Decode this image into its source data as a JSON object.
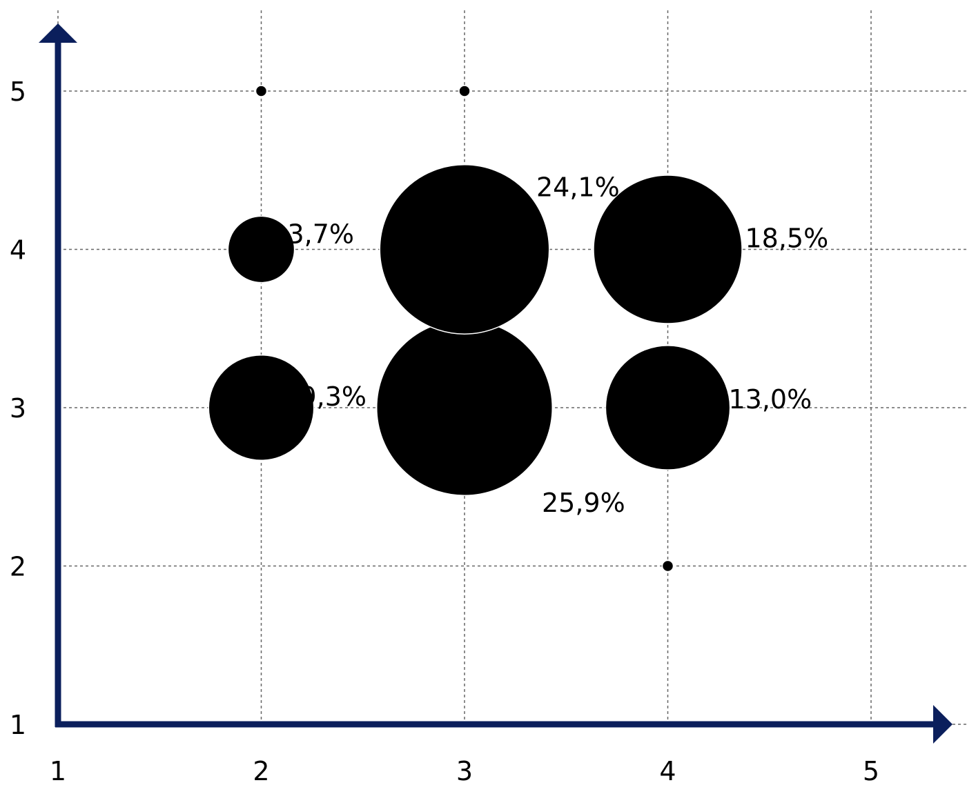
{
  "chart_data": {
    "type": "scatter",
    "subtype": "bubble",
    "title": "",
    "xlabel": "",
    "ylabel": "",
    "xlim": [
      1,
      5
    ],
    "ylim": [
      1,
      5
    ],
    "x_ticks": [
      "1",
      "2",
      "3",
      "4",
      "5"
    ],
    "y_ticks": [
      "1",
      "2",
      "3",
      "4",
      "5"
    ],
    "grid": true,
    "legend": "none",
    "axis_color": "#0b1f5c",
    "bubble_color": "#000000",
    "points": [
      {
        "x": 2,
        "y": 5,
        "share": 0.0,
        "label": ""
      },
      {
        "x": 3,
        "y": 5,
        "share": 0.0,
        "label": ""
      },
      {
        "x": 2,
        "y": 4,
        "share": 3.7,
        "label": "3,7%"
      },
      {
        "x": 3,
        "y": 4,
        "share": 24.1,
        "label": "24,1%"
      },
      {
        "x": 4,
        "y": 4,
        "share": 18.5,
        "label": "18,5%"
      },
      {
        "x": 2,
        "y": 3,
        "share": 9.3,
        "label": "9,3%"
      },
      {
        "x": 3,
        "y": 3,
        "share": 25.9,
        "label": "25,9%"
      },
      {
        "x": 4,
        "y": 3,
        "share": 13.0,
        "label": "13,0%"
      },
      {
        "x": 4,
        "y": 2,
        "share": 0.0,
        "label": ""
      }
    ]
  }
}
